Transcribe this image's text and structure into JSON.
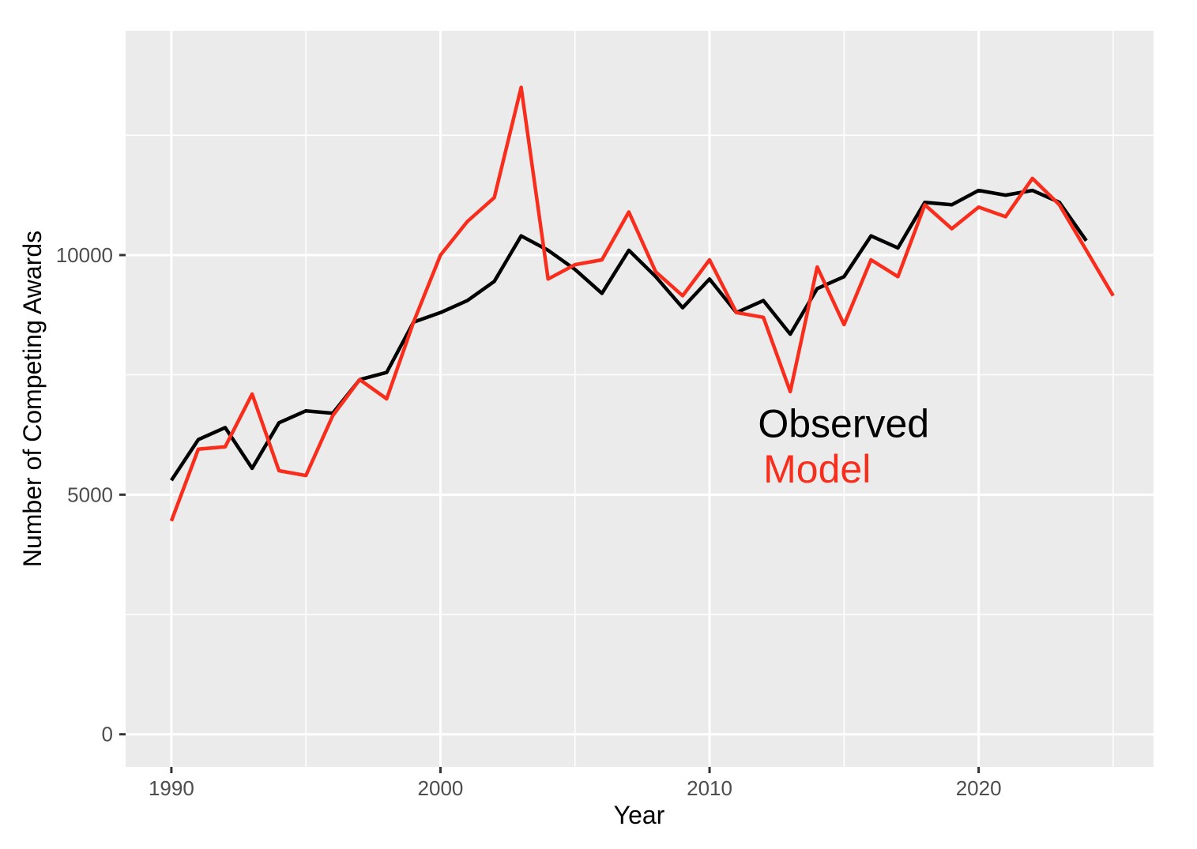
{
  "chart_data": {
    "type": "line",
    "title": "",
    "xlabel": "Year",
    "ylabel": "Number of Competing Awards",
    "xticks": [
      1990,
      2000,
      2010,
      2020
    ],
    "xticks_minor": [
      1995,
      2005,
      2015,
      2025
    ],
    "yticks": [
      0,
      5000,
      10000
    ],
    "yticks_minor": [
      2500,
      7500,
      12500
    ],
    "xlim": [
      1988.3,
      2026.5
    ],
    "ylim": [
      -680,
      14680
    ],
    "grid": "major+minor",
    "legend_position": "none",
    "series": [
      {
        "name": "Observed",
        "color": "#000000",
        "start_year": 1990,
        "values": [
          5300,
          6150,
          6400,
          5550,
          6500,
          6750,
          6700,
          7400,
          7550,
          8600,
          8800,
          9050,
          9450,
          10400,
          10100,
          9700,
          9200,
          10100,
          9550,
          8900,
          9500,
          8800,
          9050,
          8350,
          9300,
          9550,
          10400,
          10150,
          11100,
          11050,
          11350,
          11250,
          11350,
          11100,
          10300
        ]
      },
      {
        "name": "Model",
        "color": "#F82D1C",
        "start_year": 1990,
        "values": [
          4450,
          5950,
          6000,
          7100,
          5500,
          5400,
          6650,
          7400,
          7000,
          8600,
          10000,
          10700,
          11200,
          13500,
          9500,
          9800,
          9900,
          10900,
          9650,
          9150,
          9900,
          8800,
          8700,
          7150,
          9750,
          8550,
          9900,
          9550,
          11050,
          10550,
          11000,
          10800,
          11600,
          11050,
          10100,
          9150
        ]
      }
    ],
    "annotations": [
      {
        "text": "Observed",
        "color": "#000000",
        "year": 2011.8,
        "value": 6200
      },
      {
        "text": "Model",
        "color": "#F82D1C",
        "year": 2012.0,
        "value": 5250
      }
    ]
  },
  "theme": {
    "panel_bg": "#EBEBEB",
    "grid_color": "#FFFFFF",
    "tick_label_color": "#4D4D4D",
    "axis_title_color": "#000000",
    "tick_mark_color": "#333333"
  }
}
